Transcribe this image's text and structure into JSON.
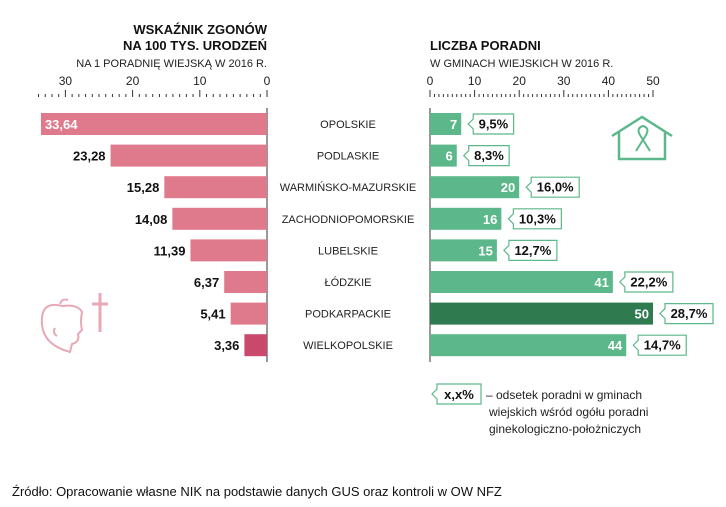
{
  "chart_data": [
    {
      "type": "bar",
      "title": "WSKAŹNIK ZGONÓW",
      "title_line2": "NA 100 TYS. URODZEŃ",
      "subtitle": "NA 1 PORADNIĘ WIEJSKĄ W 2016 R.",
      "orientation": "horizontal-reversed",
      "xlim": [
        0,
        35
      ],
      "ticks": [
        "30",
        "20",
        "10",
        "0"
      ],
      "categories": [
        "OPOLSKIE",
        "PODLASKIE",
        "WARMIŃSKO-MAZURSKIE",
        "ZACHODNIOPOMORSKIE",
        "LUBELSKIE",
        "ŁÓDZKIE",
        "PODKARPACKIE",
        "WIELKOPOLSKIE"
      ],
      "values": [
        33.64,
        23.28,
        15.28,
        14.08,
        11.39,
        6.37,
        5.41,
        3.36
      ],
      "labels": [
        "33,64",
        "23,28",
        "15,28",
        "14,08",
        "11,39",
        "6,37",
        "5,41",
        "3,36"
      ]
    },
    {
      "type": "bar",
      "title": "LICZBA PORADNI",
      "subtitle": "W GMINACH WIEJSKICH W 2016 R.",
      "xlim": [
        0,
        50
      ],
      "ticks": [
        "0",
        "10",
        "20",
        "30",
        "40",
        "50"
      ],
      "values": [
        7,
        6,
        20,
        16,
        15,
        41,
        50,
        44
      ],
      "labels": [
        "7",
        "6",
        "20",
        "16",
        "15",
        "41",
        "50",
        "44"
      ],
      "percent_labels": [
        "9,5%",
        "8,3%",
        "16,0%",
        "10,3%",
        "12,7%",
        "22,2%",
        "28,7%",
        "14,7%"
      ]
    }
  ],
  "legend": {
    "sample": "x,x%",
    "lines": [
      "– odsetek poradni w gminach",
      "wiejskich wśród ogółu poradni",
      "ginekologiczno-położniczych"
    ]
  },
  "source": "Źródło: Opracowanie własne NIK na podstawie danych GUS oraz kontroli w OW NFZ",
  "colors": {
    "pink": "#df7a8d",
    "pink_dark": "#c9496c",
    "green": "#5cb88a",
    "green_dark": "#2f7a4f",
    "icon_pink": "#e8a9b6"
  }
}
